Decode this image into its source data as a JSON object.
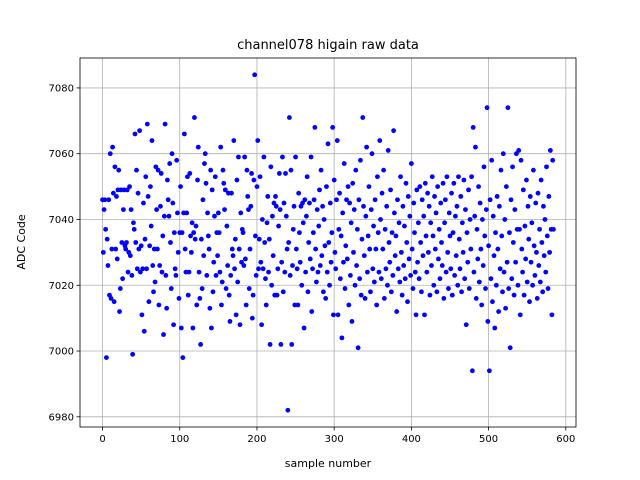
{
  "chart_data": {
    "type": "scatter",
    "title": "channel078 higain raw data",
    "xlabel": "sample number",
    "ylabel": "ADC Code",
    "color": "#0000ff",
    "grid": true,
    "xlim": [
      -29.2,
      613.2
    ],
    "ylim": [
      6976.9,
      7089.1
    ],
    "xticks": [
      0,
      100,
      200,
      300,
      400,
      500,
      600
    ],
    "yticks": [
      6980,
      7000,
      7020,
      7040,
      7060,
      7080
    ],
    "x": [
      0,
      1,
      2,
      3,
      4,
      5,
      6,
      7,
      8,
      9,
      10,
      11,
      12,
      13,
      14,
      15,
      16,
      17,
      18,
      19,
      20,
      21,
      22,
      23,
      24,
      25,
      26,
      27,
      28,
      29,
      30,
      31,
      32,
      33,
      34,
      35,
      36,
      37,
      38,
      39,
      40,
      41,
      42,
      43,
      44,
      45,
      46,
      47,
      48,
      49,
      50,
      51,
      52,
      53,
      54,
      55,
      56,
      57,
      58,
      59,
      60,
      61,
      62,
      63,
      64,
      65,
      66,
      67,
      68,
      69,
      70,
      71,
      72,
      73,
      74,
      75,
      76,
      77,
      78,
      79,
      80,
      81,
      82,
      83,
      84,
      85,
      86,
      87,
      88,
      89,
      90,
      91,
      92,
      93,
      94,
      95,
      96,
      97,
      98,
      99,
      100,
      101,
      102,
      103,
      104,
      105,
      106,
      107,
      108,
      109,
      110,
      111,
      112,
      113,
      114,
      115,
      116,
      117,
      118,
      119,
      120,
      121,
      122,
      123,
      124,
      125,
      126,
      127,
      128,
      129,
      130,
      131,
      132,
      133,
      134,
      135,
      136,
      137,
      138,
      139,
      140,
      141,
      142,
      143,
      144,
      145,
      146,
      147,
      148,
      149,
      150,
      151,
      152,
      153,
      154,
      155,
      156,
      157,
      158,
      159,
      160,
      161,
      162,
      163,
      164,
      165,
      166,
      167,
      168,
      169,
      170,
      171,
      172,
      173,
      174,
      175,
      176,
      177,
      178,
      179,
      180,
      181,
      182,
      183,
      184,
      185,
      186,
      187,
      188,
      189,
      190,
      191,
      192,
      193,
      194,
      195,
      196,
      197,
      198,
      199,
      200,
      201,
      202,
      203,
      204,
      205,
      206,
      207,
      208,
      209,
      210,
      211,
      212,
      213,
      214,
      215,
      216,
      217,
      218,
      219,
      220,
      221,
      222,
      223,
      224,
      225,
      226,
      227,
      228,
      229,
      230,
      231,
      232,
      233,
      234,
      235,
      236,
      237,
      238,
      239,
      240,
      241,
      242,
      243,
      244,
      245,
      246,
      247,
      248,
      249,
      250,
      251,
      252,
      253,
      254,
      255,
      256,
      257,
      258,
      259,
      260,
      261,
      262,
      263,
      264,
      265,
      266,
      267,
      268,
      269,
      270,
      271,
      272,
      273,
      274,
      275,
      276,
      277,
      278,
      279,
      280,
      281,
      282,
      283,
      284,
      285,
      286,
      287,
      288,
      289,
      290,
      291,
      292,
      293,
      294,
      295,
      296,
      297,
      298,
      299,
      300,
      301,
      302,
      303,
      304,
      305,
      306,
      307,
      308,
      309,
      310,
      311,
      312,
      313,
      314,
      315,
      316,
      317,
      318,
      319,
      320,
      321,
      322,
      323,
      324,
      325,
      326,
      327,
      328,
      329,
      330,
      331,
      332,
      333,
      334,
      335,
      336,
      337,
      338,
      339,
      340,
      341,
      342,
      343,
      344,
      345,
      346,
      347,
      348,
      349,
      350,
      351,
      352,
      353,
      354,
      355,
      356,
      357,
      358,
      359,
      360,
      361,
      362,
      363,
      364,
      365,
      366,
      367,
      368,
      369,
      370,
      371,
      372,
      373,
      374,
      375,
      376,
      377,
      378,
      379,
      380,
      381,
      382,
      383,
      384,
      385,
      386,
      387,
      388,
      389,
      390,
      391,
      392,
      393,
      394,
      395,
      396,
      397,
      398,
      399,
      400,
      401,
      402,
      403,
      404,
      405,
      406,
      407,
      408,
      409,
      410,
      411,
      412,
      413,
      414,
      415,
      416,
      417,
      418,
      419,
      420,
      421,
      422,
      423,
      424,
      425,
      426,
      427,
      428,
      429,
      430,
      431,
      432,
      433,
      434,
      435,
      436,
      437,
      438,
      439,
      440,
      441,
      442,
      443,
      444,
      445,
      446,
      447,
      448,
      449,
      450,
      451,
      452,
      453,
      454,
      455,
      456,
      457,
      458,
      459,
      460,
      461,
      462,
      463,
      464,
      465,
      466,
      467,
      468,
      469,
      470,
      471,
      472,
      473,
      474,
      475,
      476,
      477,
      478,
      479,
      480,
      481,
      482,
      483,
      484,
      485,
      486,
      487,
      488,
      489,
      490,
      491,
      492,
      493,
      494,
      495,
      496,
      497,
      498,
      499,
      500,
      501,
      502,
      503,
      504,
      505,
      506,
      507,
      508,
      509,
      510,
      511,
      512,
      513,
      514,
      515,
      516,
      517,
      518,
      519,
      520,
      521,
      522,
      523,
      524,
      525,
      526,
      527,
      528,
      529,
      530,
      531,
      532,
      533,
      534,
      535,
      536,
      537,
      538,
      539,
      540,
      541,
      542,
      543,
      544,
      545,
      546,
      547,
      548,
      549,
      550,
      551,
      552,
      553,
      554,
      555,
      556,
      557,
      558,
      559,
      560,
      561,
      562,
      563,
      564,
      565,
      566,
      567,
      568,
      569,
      570,
      571,
      572,
      573,
      574,
      575,
      576,
      577,
      578,
      579,
      580,
      581,
      582,
      583,
      584
    ],
    "values": [
      7046,
      7030,
      7043,
      7046,
      7037,
      6998,
      7034,
      7026,
      7046,
      7017,
      7060,
      7016,
      7031,
      7062,
      7048,
      7015,
      7056,
      7031,
      7047,
      7028,
      7049,
      7055,
      7012,
      7019,
      7049,
      7033,
      7022,
      7043,
      7049,
      7032,
      7031,
      7033,
      7049,
      7024,
      7030,
      7050,
      7029,
      7043,
      7023,
      6999,
      7039,
      7037,
      7066,
      7033,
      7055,
      7025,
      7048,
      7031,
      7067,
      7024,
      7032,
      7011,
      7025,
      7045,
      7006,
      7034,
      7053,
      7025,
      7069,
      7047,
      7015,
      7032,
      7050,
      7038,
      7064,
      7026,
      7018,
      7031,
      7021,
      7056,
      7043,
      7031,
      7055,
      7014,
      7026,
      7044,
      7054,
      7024,
      7035,
      7005,
      7041,
      7069,
      7023,
      7013,
      7052,
      7046,
      7041,
      7057,
      7033,
      7019,
      7060,
      7045,
      7008,
      7036,
      7025,
      7023,
      7058,
      7042,
      7030,
      7016,
      7036,
      7050,
      7007,
      7036,
      6998,
      7042,
      7066,
      7031,
      7024,
      7042,
      7053,
      7017,
      7024,
      7054,
      7035,
      7030,
      7039,
      7007,
      7036,
      7071,
      7034,
      7038,
      7014,
      7052,
      7062,
      7024,
      7016,
      7002,
      7034,
      7019,
      7046,
      7029,
      7057,
      7060,
      7051,
      7023,
      7042,
      7035,
      7031,
      7013,
      7055,
      7007,
      7049,
      7018,
      7027,
      7041,
      7053,
      7023,
      7036,
      7029,
      7042,
      7036,
      7024,
      7062,
      7014,
      7021,
      7055,
      7051,
      7043,
      7049,
      7019,
      7038,
      7026,
      7048,
      7017,
      7009,
      7023,
      7048,
      7031,
      7029,
      7064,
      7025,
      7034,
      7011,
      7052,
      7021,
      7059,
      7031,
      7008,
      7042,
      7027,
      7037,
      7036,
      7026,
      7059,
      7028,
      7014,
      7055,
      7047,
      7043,
      7019,
      7031,
      7044,
      7054,
      7010,
      7017,
      7052,
      7084,
      7035,
      7023,
      7050,
      7064,
      7025,
      7034,
      7053,
      7027,
      7008,
      7040,
      7025,
      7059,
      7033,
      7022,
      7014,
      7039,
      7047,
      7024,
      7034,
      7002,
      7056,
      7020,
      7041,
      7029,
      7045,
      7017,
      7047,
      7044,
      7017,
      7025,
      7038,
      7054,
      7043,
      7002,
      7027,
      7059,
      7018,
      7045,
      7024,
      7054,
      7041,
      7031,
      6982,
      7033,
      7071,
      7023,
      7055,
      7002,
      7026,
      7037,
      7044,
      7014,
      7059,
      7031,
      7025,
      7014,
      7048,
      7036,
      7027,
      7044,
      7020,
      7045,
      7039,
      7007,
      7046,
      7024,
      7041,
      7053,
      7018,
      7033,
      7045,
      7028,
      7059,
      7012,
      7025,
      7036,
      7046,
      7068,
      7031,
      7021,
      7043,
      7024,
      7038,
      7049,
      7026,
      7055,
      7029,
      7044,
      7018,
      7040,
      7032,
      7016,
      7050,
      7024,
      7063,
      7033,
      7020,
      7045,
      7027,
      7036,
      7068,
      7011,
      7052,
      7030,
      7025,
      7046,
      7064,
      7011,
      7037,
      7048,
      7022,
      7035,
      7004,
      7042,
      7027,
      7057,
      7019,
      7032,
      7046,
      7028,
      7050,
      7014,
      7045,
      7023,
      7039,
      7009,
      7051,
      7030,
      7043,
      7020,
      7055,
      7026,
      7037,
      7001,
      7046,
      7022,
      7058,
      7017,
      7034,
      7071,
      7044,
      7029,
      7016,
      7041,
      7062,
      7024,
      7035,
      7050,
      7031,
      7018,
      7043,
      7060,
      7025,
      7038,
      7021,
      7046,
      7031,
      7014,
      7053,
      7036,
      7024,
      7064,
      7040,
      7022,
      7048,
      7031,
      7055,
      7016,
      7037,
      7025,
      7044,
      7020,
      7061,
      7033,
      7027,
      7049,
      7018,
      7036,
      7023,
      7067,
      7042,
      7029,
      7035,
      7012,
      7046,
      7025,
      7039,
      7021,
      7053,
      7030,
      7017,
      7044,
      7026,
      7038,
      7022,
      7051,
      7033,
      7015,
      7047,
      7028,
      7041,
      7023,
      7057,
      7031,
      7019,
      7045,
      7036,
      7024,
      7011,
      7049,
      7027,
      7039,
      7022,
      7050,
      7033,
      7018,
      7046,
      7029,
      7041,
      7011,
      7051,
      7035,
      7024,
      7048,
      7030,
      7044,
      7017,
      7039,
      7026,
      7053,
      7035,
      7020,
      7047,
      7031,
      7042,
      7018,
      7050,
      7028,
      7037,
      7022,
      7045,
      7033,
      7026,
      7051,
      7016,
      7039,
      7046,
      7024,
      7053,
      7030,
      7019,
      7042,
      7035,
      7025,
      7048,
      7017,
      7036,
      7051,
      7023,
      7041,
      7029,
      7044,
      7020,
      7053,
      7034,
      7025,
      7047,
      7018,
      7039,
      7030,
      7052,
      7022,
      7043,
      7008,
      7036,
      7027,
      7049,
      7019,
      7040,
      7031,
      7053,
      6994,
      7068,
      7024,
      7041,
      7062,
      7016,
      7037,
      7028,
      7050,
      7021,
      7045,
      7031,
      7014,
      7040,
      7026,
      7056,
      7035,
      7019,
      7043,
      7074,
      7009,
      7032,
      6994,
      7046,
      7022,
      7058,
      7015,
      7041,
      7029,
      7007,
      7036,
      7020,
      7047,
      7031,
      7012,
      7044,
      7025,
      7055,
      7035,
      7018,
      7060,
      7024,
      7040,
      7013,
      7050,
      7027,
      7074,
      7019,
      7036,
      7001,
      7046,
      7022,
      7056,
      7033,
      7017,
      7043,
      7027,
      7060,
      7037,
      7020,
      7061,
      7037,
      7011,
      7058,
      7031,
      7024,
      7049,
      7017,
      7038,
      7028,
      7052,
      7021,
      7044,
      7034,
      7015,
      7047,
      7027,
      7039,
      7020,
      7055,
      7032,
      7023,
      7045,
      7030,
      7016,
      7048,
      7026,
      7037,
      7021,
      7052,
      7033,
      7018,
      7044,
      7029,
      7040,
      7024,
      7056,
      7035,
      7019,
      7047,
      7030,
      7061,
      7037,
      7011,
      7058,
      7037
    ]
  }
}
